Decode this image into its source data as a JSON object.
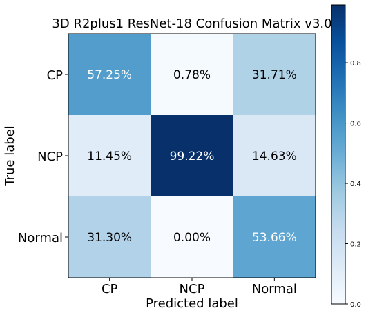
{
  "chart_data": {
    "type": "heatmap",
    "title": "3D R2plus1 ResNet-18 Confusion Matrix v3.0",
    "xlabel": "Predicted label",
    "ylabel": "True label",
    "row_labels": [
      "CP",
      "NCP",
      "Normal"
    ],
    "col_labels": [
      "CP",
      "NCP",
      "Normal"
    ],
    "values": [
      [
        0.5725,
        0.0078,
        0.3171
      ],
      [
        0.1145,
        0.9922,
        0.1463
      ],
      [
        0.313,
        0.0,
        0.5366
      ]
    ],
    "cell_labels": [
      [
        "57.25%",
        "0.78%",
        "31.71%"
      ],
      [
        "11.45%",
        "99.22%",
        "14.63%"
      ],
      [
        "31.30%",
        "0.00%",
        "53.66%"
      ]
    ],
    "colormap": "Blues",
    "colorbar": {
      "range": [
        0,
        0.9922
      ],
      "ticks": [
        0.0,
        0.2,
        0.4,
        0.6,
        0.8
      ],
      "tick_labels": [
        "0.0",
        "0.2",
        "0.4",
        "0.6",
        "0.8"
      ]
    },
    "grid": false
  },
  "colors": {
    "text_dark": "#000000",
    "text_light": "#ffffff",
    "axis": "#000000"
  }
}
